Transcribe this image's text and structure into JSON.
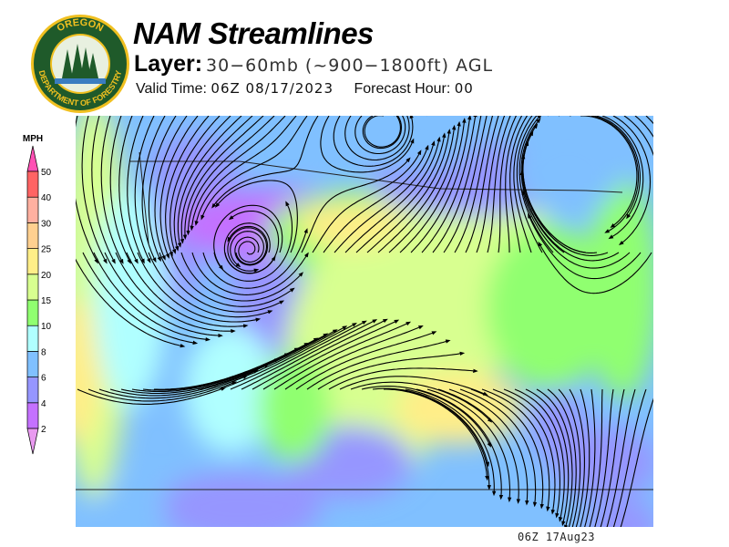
{
  "header": {
    "title": "NAM Streamlines",
    "layer_label": "Layer:",
    "layer_value": "30−60mb (~900−1800ft) AGL",
    "valid_time_label": "Valid Time:",
    "valid_time_value": "06Z 08/17/2023",
    "forecast_hour_label": "Forecast Hour:",
    "forecast_hour_value": "00"
  },
  "logo": {
    "top_text": "OREGON",
    "bottom_text": "DEPARTMENT OF FORESTRY"
  },
  "legend": {
    "unit": "MPH",
    "levels": [
      "2",
      "4",
      "6",
      "8",
      "10",
      "15",
      "20",
      "25",
      "30",
      "40",
      "50"
    ],
    "colors": [
      "#e99af0",
      "#c471ff",
      "#9696ff",
      "#80c0ff",
      "#b0ffff",
      "#90ff70",
      "#d8ff90",
      "#ffee88",
      "#ffd090",
      "#ffb0a0",
      "#ff6464",
      "#ff50b4"
    ]
  },
  "footer": {
    "timestamp": "06Z 17Aug23"
  }
}
